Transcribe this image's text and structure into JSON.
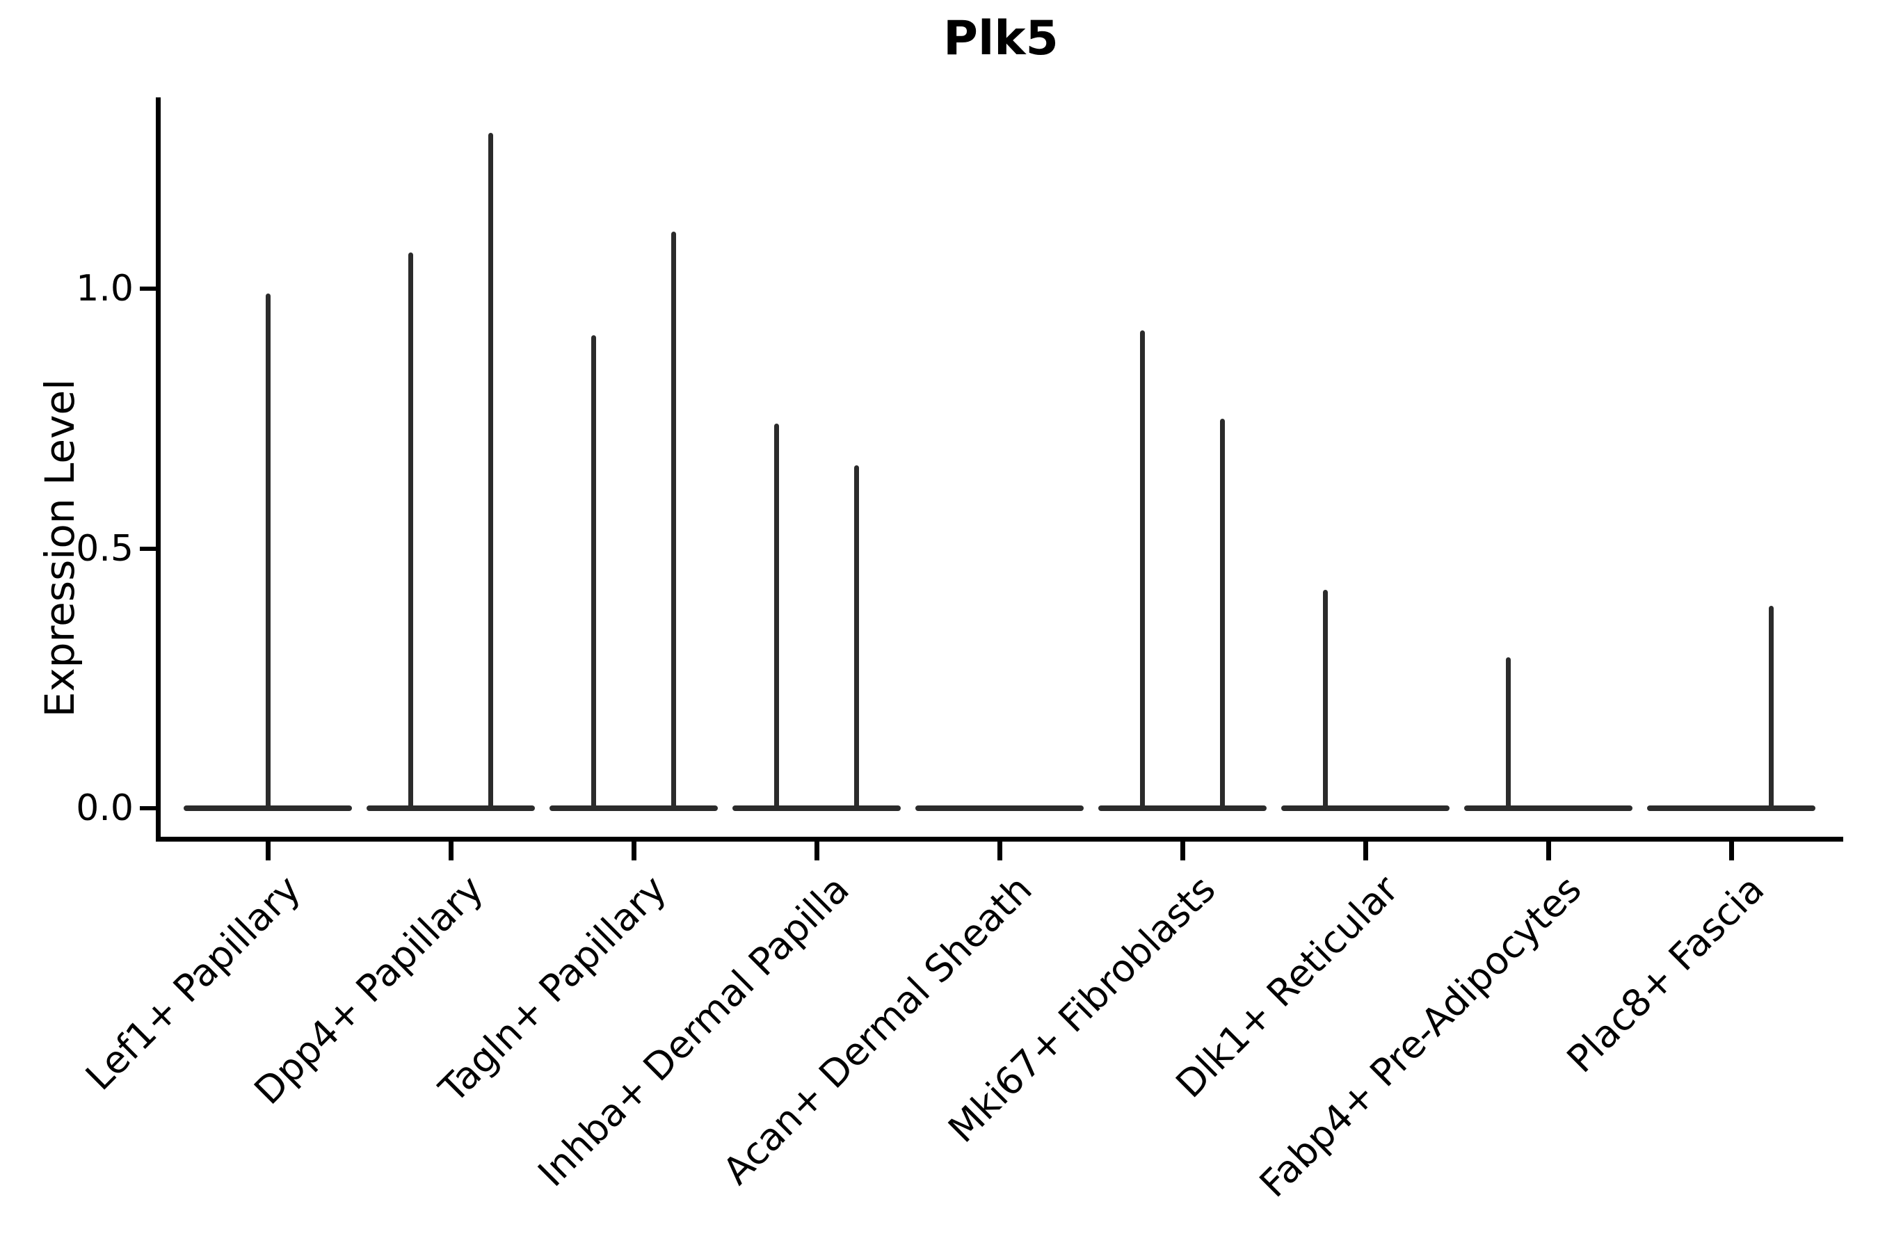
{
  "chart_data": {
    "type": "violin",
    "title": "Plk5",
    "ylabel": "Expression Level",
    "xlabel": "",
    "ytick_labels": [
      "0.0",
      "0.5",
      "1.0"
    ],
    "ytick_values": [
      0.0,
      0.5,
      1.0
    ],
    "ylim": [
      -0.06,
      1.37
    ],
    "grid": false,
    "legend": false,
    "background": "#ffffff",
    "axis_color": "#000000",
    "violin_color": "#2b2b2b",
    "note": "Single-gene violin plot; each cell type shows a flat density base at expression 0 with thin vertical spikes up to the maximum expression of rare expressing cells",
    "categories": [
      {
        "label": "Lef1+ Papillary",
        "base": 0.0,
        "spikes": [
          {
            "pos": 0.0,
            "max": 0.99
          }
        ]
      },
      {
        "label": "Dpp4+ Papillary",
        "base": 0.0,
        "spikes": [
          {
            "pos": -0.22,
            "max": 1.07
          },
          {
            "pos": 0.22,
            "max": 1.3
          }
        ]
      },
      {
        "label": "Tagln+ Papillary",
        "base": 0.0,
        "spikes": [
          {
            "pos": -0.22,
            "max": 0.91
          },
          {
            "pos": 0.22,
            "max": 1.11
          }
        ]
      },
      {
        "label": "Inhba+ Dermal Papilla",
        "base": 0.0,
        "spikes": [
          {
            "pos": -0.22,
            "max": 0.74
          },
          {
            "pos": 0.22,
            "max": 0.66
          }
        ]
      },
      {
        "label": "Acan+ Dermal Sheath",
        "base": 0.0,
        "spikes": []
      },
      {
        "label": "Mki67+ Fibroblasts",
        "base": 0.0,
        "spikes": [
          {
            "pos": -0.22,
            "max": 0.92
          },
          {
            "pos": 0.22,
            "max": 0.75
          }
        ]
      },
      {
        "label": "Dlk1+ Reticular",
        "base": 0.0,
        "spikes": [
          {
            "pos": -0.22,
            "max": 0.42
          }
        ]
      },
      {
        "label": "Fabp4+ Pre-Adipocytes",
        "base": 0.0,
        "spikes": [
          {
            "pos": -0.22,
            "max": 0.29
          }
        ]
      },
      {
        "label": "Plac8+ Fascia",
        "base": 0.0,
        "spikes": [
          {
            "pos": 0.22,
            "max": 0.39
          }
        ]
      }
    ]
  }
}
